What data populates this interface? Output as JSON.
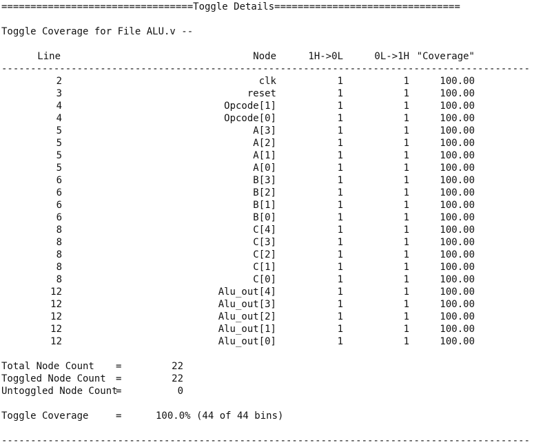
{
  "section_title": "=================================Toggle Details================================",
  "file_heading": "Toggle Coverage for File ALU.v --",
  "table": {
    "headers": {
      "line": "Line",
      "node": "Node",
      "h_to_l": "1H->0L",
      "l_to_h": "0L->1H",
      "coverage": "\"Coverage\""
    },
    "separator": "-------------------------------------------------------------------------------------------",
    "rows": [
      {
        "line": "2",
        "node": "clk",
        "h_to_l": "1",
        "l_to_h": "1",
        "coverage": "100.00"
      },
      {
        "line": "3",
        "node": "reset",
        "h_to_l": "1",
        "l_to_h": "1",
        "coverage": "100.00"
      },
      {
        "line": "4",
        "node": "Opcode[1]",
        "h_to_l": "1",
        "l_to_h": "1",
        "coverage": "100.00"
      },
      {
        "line": "4",
        "node": "Opcode[0]",
        "h_to_l": "1",
        "l_to_h": "1",
        "coverage": "100.00"
      },
      {
        "line": "5",
        "node": "A[3]",
        "h_to_l": "1",
        "l_to_h": "1",
        "coverage": "100.00"
      },
      {
        "line": "5",
        "node": "A[2]",
        "h_to_l": "1",
        "l_to_h": "1",
        "coverage": "100.00"
      },
      {
        "line": "5",
        "node": "A[1]",
        "h_to_l": "1",
        "l_to_h": "1",
        "coverage": "100.00"
      },
      {
        "line": "5",
        "node": "A[0]",
        "h_to_l": "1",
        "l_to_h": "1",
        "coverage": "100.00"
      },
      {
        "line": "6",
        "node": "B[3]",
        "h_to_l": "1",
        "l_to_h": "1",
        "coverage": "100.00"
      },
      {
        "line": "6",
        "node": "B[2]",
        "h_to_l": "1",
        "l_to_h": "1",
        "coverage": "100.00"
      },
      {
        "line": "6",
        "node": "B[1]",
        "h_to_l": "1",
        "l_to_h": "1",
        "coverage": "100.00"
      },
      {
        "line": "6",
        "node": "B[0]",
        "h_to_l": "1",
        "l_to_h": "1",
        "coverage": "100.00"
      },
      {
        "line": "8",
        "node": "C[4]",
        "h_to_l": "1",
        "l_to_h": "1",
        "coverage": "100.00"
      },
      {
        "line": "8",
        "node": "C[3]",
        "h_to_l": "1",
        "l_to_h": "1",
        "coverage": "100.00"
      },
      {
        "line": "8",
        "node": "C[2]",
        "h_to_l": "1",
        "l_to_h": "1",
        "coverage": "100.00"
      },
      {
        "line": "8",
        "node": "C[1]",
        "h_to_l": "1",
        "l_to_h": "1",
        "coverage": "100.00"
      },
      {
        "line": "8",
        "node": "C[0]",
        "h_to_l": "1",
        "l_to_h": "1",
        "coverage": "100.00"
      },
      {
        "line": "12",
        "node": "Alu_out[4]",
        "h_to_l": "1",
        "l_to_h": "1",
        "coverage": "100.00"
      },
      {
        "line": "12",
        "node": "Alu_out[3]",
        "h_to_l": "1",
        "l_to_h": "1",
        "coverage": "100.00"
      },
      {
        "line": "12",
        "node": "Alu_out[2]",
        "h_to_l": "1",
        "l_to_h": "1",
        "coverage": "100.00"
      },
      {
        "line": "12",
        "node": "Alu_out[1]",
        "h_to_l": "1",
        "l_to_h": "1",
        "coverage": "100.00"
      },
      {
        "line": "12",
        "node": "Alu_out[0]",
        "h_to_l": "1",
        "l_to_h": "1",
        "coverage": "100.00"
      }
    ]
  },
  "summary": {
    "total_label": "Total Node Count",
    "total_value": "22",
    "toggled_label": "Toggled Node Count",
    "toggled_value": "22",
    "untoggled_label": "Untoggled Node Count",
    "untoggled_value": "0",
    "equals": "=",
    "coverage_label": "Toggle Coverage",
    "coverage_value": "100.0% (44 of 44 bins)"
  },
  "bottom_rule": "-------------------------------------------------------------------------------------------"
}
